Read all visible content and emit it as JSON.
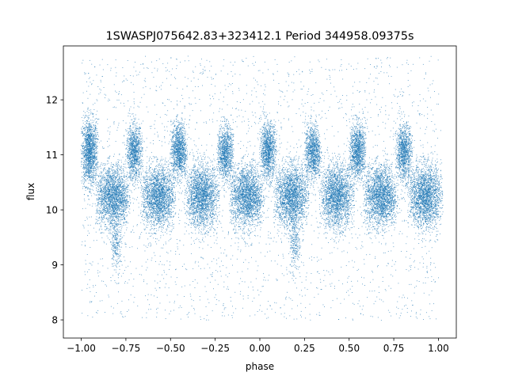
{
  "chart_data": {
    "type": "scatter",
    "title": "1SWASPJ075642.83+323412.1 Period 344958.09375s",
    "xlabel": "phase",
    "ylabel": "flux",
    "xlim": [
      -1.1,
      1.1
    ],
    "ylim": [
      7.67,
      12.98
    ],
    "xticks": [
      {
        "value": -1.0,
        "label": "−1.00"
      },
      {
        "value": -0.75,
        "label": "−0.75"
      },
      {
        "value": -0.5,
        "label": "−0.50"
      },
      {
        "value": -0.25,
        "label": "−0.25"
      },
      {
        "value": 0.0,
        "label": "0.00"
      },
      {
        "value": 0.25,
        "label": "0.25"
      },
      {
        "value": 0.5,
        "label": "0.50"
      },
      {
        "value": 0.75,
        "label": "0.75"
      },
      {
        "value": 1.0,
        "label": "1.00"
      }
    ],
    "yticks": [
      {
        "value": 8,
        "label": "8"
      },
      {
        "value": 9,
        "label": "9"
      },
      {
        "value": 10,
        "label": "10"
      },
      {
        "value": 11,
        "label": "11"
      },
      {
        "value": 12,
        "label": "12"
      }
    ],
    "point_color": "#1f77b4",
    "grid": false,
    "series": [
      {
        "clusters": [
          {
            "x": -0.955,
            "y": 11.05,
            "sx": 0.022,
            "sy": 0.3,
            "n": 1500
          },
          {
            "x": -0.825,
            "y": 10.25,
            "sx": 0.045,
            "sy": 0.28,
            "n": 2200
          },
          {
            "x": -0.805,
            "y": 9.4,
            "sx": 0.015,
            "sy": 0.25,
            "n": 250
          },
          {
            "x": -0.705,
            "y": 11.05,
            "sx": 0.022,
            "sy": 0.25,
            "n": 1100
          },
          {
            "x": -0.57,
            "y": 10.25,
            "sx": 0.045,
            "sy": 0.28,
            "n": 2200
          },
          {
            "x": -0.455,
            "y": 11.08,
            "sx": 0.022,
            "sy": 0.25,
            "n": 1200
          },
          {
            "x": -0.325,
            "y": 10.25,
            "sx": 0.045,
            "sy": 0.28,
            "n": 2200
          },
          {
            "x": -0.195,
            "y": 11.05,
            "sx": 0.022,
            "sy": 0.25,
            "n": 1100
          },
          {
            "x": -0.075,
            "y": 10.25,
            "sx": 0.045,
            "sy": 0.28,
            "n": 2200
          },
          {
            "x": 0.045,
            "y": 11.08,
            "sx": 0.022,
            "sy": 0.25,
            "n": 1200
          },
          {
            "x": 0.175,
            "y": 10.25,
            "sx": 0.045,
            "sy": 0.28,
            "n": 2200
          },
          {
            "x": 0.195,
            "y": 9.4,
            "sx": 0.015,
            "sy": 0.25,
            "n": 250
          },
          {
            "x": 0.295,
            "y": 11.05,
            "sx": 0.022,
            "sy": 0.25,
            "n": 1100
          },
          {
            "x": 0.43,
            "y": 10.25,
            "sx": 0.045,
            "sy": 0.28,
            "n": 2200
          },
          {
            "x": 0.545,
            "y": 11.08,
            "sx": 0.022,
            "sy": 0.25,
            "n": 1200
          },
          {
            "x": 0.675,
            "y": 10.25,
            "sx": 0.045,
            "sy": 0.28,
            "n": 2200
          },
          {
            "x": 0.805,
            "y": 11.05,
            "sx": 0.022,
            "sy": 0.25,
            "n": 1100
          },
          {
            "x": 0.925,
            "y": 10.25,
            "sx": 0.045,
            "sy": 0.28,
            "n": 2200
          }
        ],
        "scatter_n": 2500,
        "scatter_xrange": [
          -1.0,
          1.0
        ],
        "scatter_yrange": [
          8.0,
          12.8
        ]
      }
    ]
  }
}
